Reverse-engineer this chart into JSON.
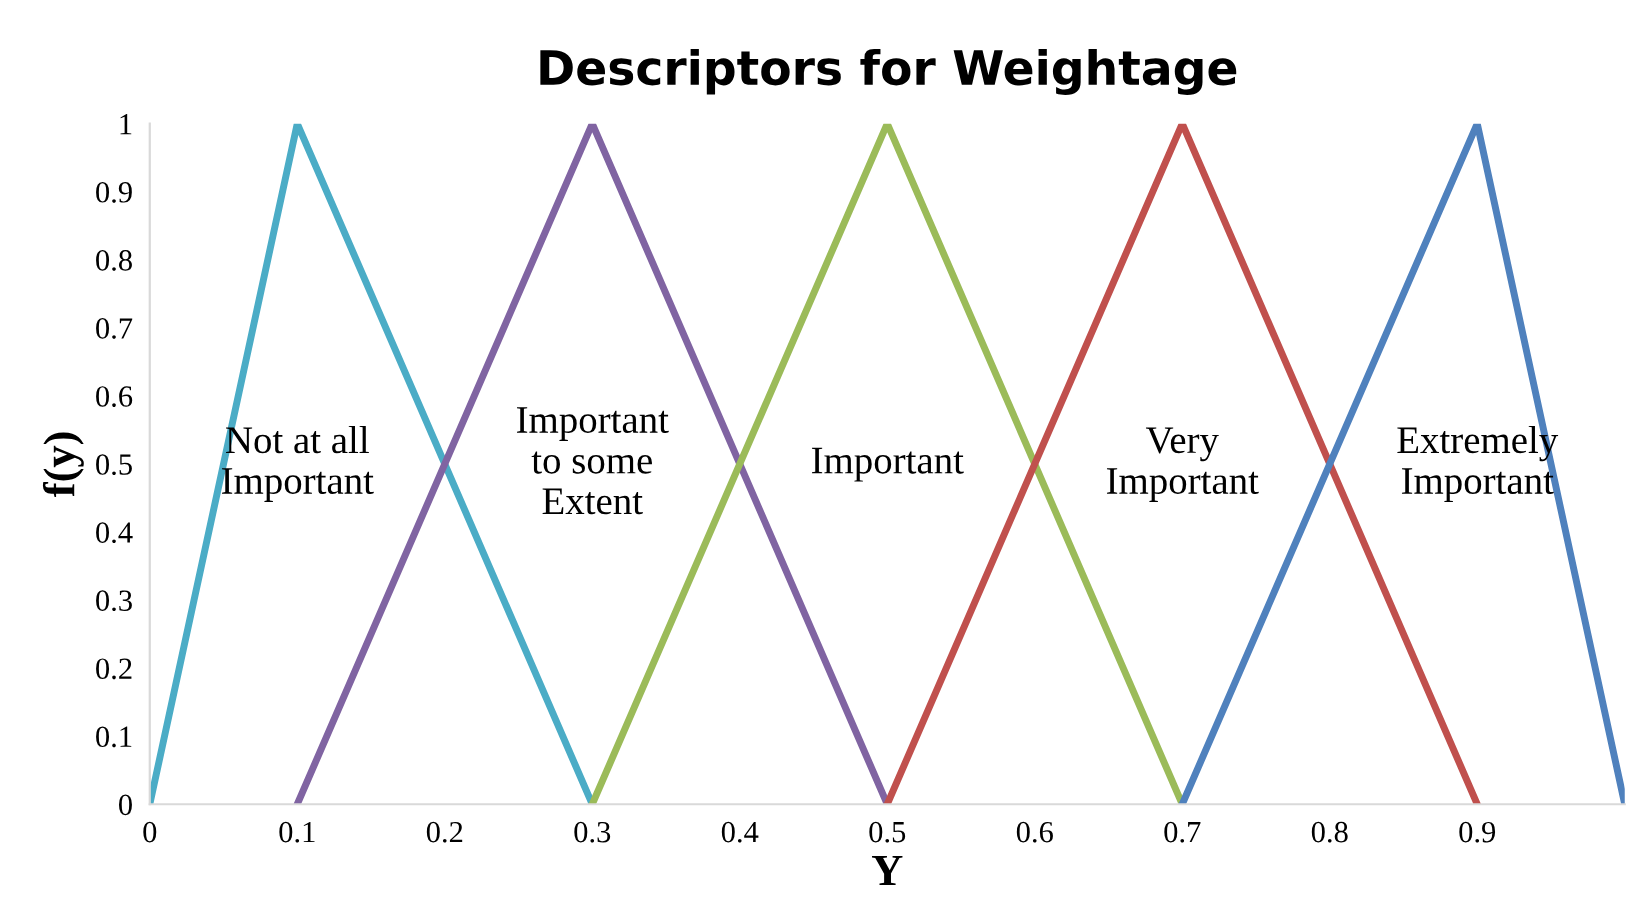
{
  "chart_data": {
    "type": "line",
    "title": "Descriptors for Weightage",
    "xlabel": "Y",
    "ylabel": "f(y)",
    "xlim": [
      0,
      1
    ],
    "xticks": [
      0,
      0.1,
      0.2,
      0.3,
      0.4,
      0.5,
      0.6,
      0.7,
      0.8,
      0.9
    ],
    "ylim": [
      0,
      1
    ],
    "yticks": [
      0,
      0.1,
      0.2,
      0.3,
      0.4,
      0.5,
      0.6,
      0.7,
      0.8,
      0.9,
      1
    ],
    "grid": false,
    "legend": false,
    "marker": "none",
    "line_style": "solid",
    "series": [
      {
        "name": "Not at all\nImportant",
        "color": "#4bacc6",
        "x": [
          0,
          0.1,
          0.3
        ],
        "values": [
          0,
          1,
          0
        ]
      },
      {
        "name": "Important\nto some\nExtent",
        "color": "#8064a2",
        "x": [
          0.1,
          0.3,
          0.5
        ],
        "values": [
          0,
          1,
          0
        ]
      },
      {
        "name": "Important",
        "color": "#9bbb59",
        "x": [
          0.3,
          0.5,
          0.7
        ],
        "values": [
          0,
          1,
          0
        ]
      },
      {
        "name": "Very\nImportant",
        "color": "#c0504d",
        "x": [
          0.5,
          0.7,
          0.9
        ],
        "values": [
          0,
          1,
          0
        ]
      },
      {
        "name": "Extremely\nImportant",
        "color": "#4f81bd",
        "x": [
          0.7,
          0.9,
          1.0
        ],
        "values": [
          0,
          1,
          0
        ]
      }
    ]
  }
}
